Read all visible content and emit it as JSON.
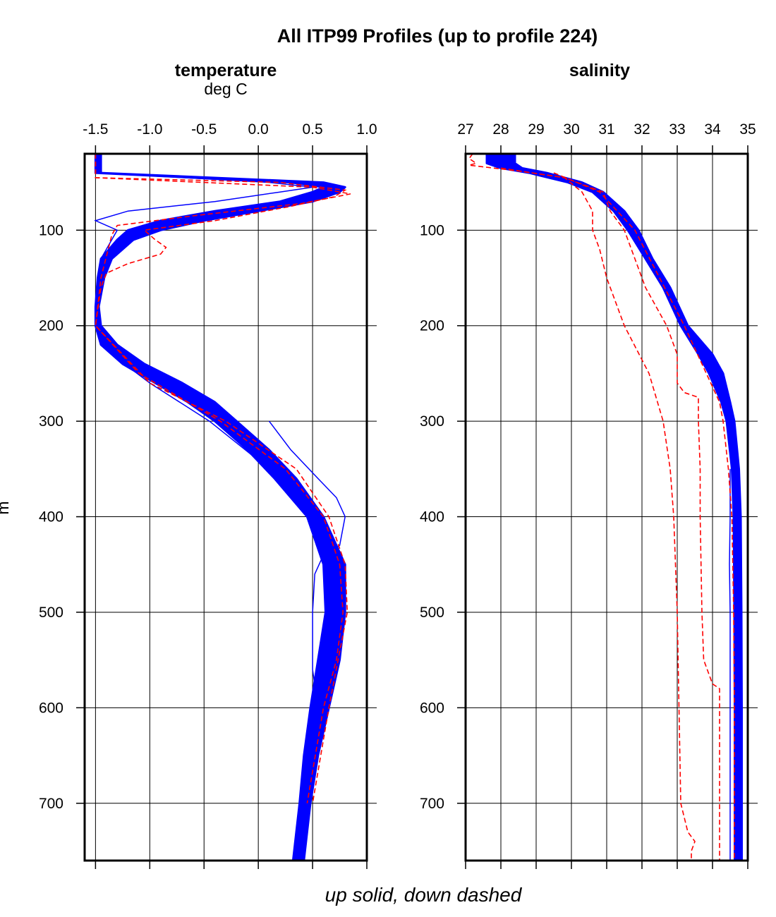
{
  "chart_data": {
    "type": "line",
    "title": "All ITP99 Profiles (up to profile 224)",
    "xlabel": "up solid, down dashed",
    "ylabel": "m",
    "legend": [
      {
        "name": "up solid",
        "color": "#0000ff",
        "style": "solid"
      },
      {
        "name": "down dashed",
        "color": "#ff0000",
        "style": "dashed"
      }
    ],
    "panels": [
      {
        "name": "temperature",
        "title": "temperature",
        "unit": "deg C",
        "xlim": [
          -1.6,
          1.0
        ],
        "ylim": [
          760,
          20
        ],
        "xticks": [
          -1.5,
          -1.0,
          -0.5,
          0.0,
          0.5,
          1.0
        ],
        "xtick_labels": [
          "-1.5",
          "-1.0",
          "-0.5",
          "0.0",
          "0.5",
          "1.0"
        ],
        "yticks": [
          100,
          200,
          300,
          400,
          500,
          600,
          700
        ],
        "ytick_labels": [
          "100",
          "200",
          "300",
          "400",
          "500",
          "600",
          "700"
        ],
        "up_band": {
          "depth": [
            20,
            40,
            50,
            55,
            60,
            70,
            80,
            90,
            100,
            110,
            130,
            150,
            180,
            200,
            220,
            240,
            260,
            280,
            300,
            330,
            360,
            400,
            450,
            500,
            550,
            600,
            650,
            700,
            760
          ],
          "min": [
            -1.5,
            -1.5,
            0.3,
            0.6,
            0.5,
            0.2,
            -0.4,
            -0.9,
            -1.2,
            -1.3,
            -1.45,
            -1.48,
            -1.5,
            -1.5,
            -1.45,
            -1.25,
            -0.95,
            -0.65,
            -0.4,
            -0.1,
            0.15,
            0.45,
            0.6,
            0.62,
            0.55,
            0.48,
            0.42,
            0.38,
            0.32
          ],
          "max": [
            -1.45,
            -1.45,
            0.6,
            0.8,
            0.75,
            0.5,
            0.0,
            -0.5,
            -0.9,
            -1.15,
            -1.35,
            -1.42,
            -1.47,
            -1.45,
            -1.3,
            -1.05,
            -0.7,
            -0.4,
            -0.2,
            0.1,
            0.35,
            0.6,
            0.8,
            0.8,
            0.75,
            0.65,
            0.55,
            0.48,
            0.42
          ]
        },
        "up_lines": [
          {
            "depth": [
              20,
              40,
              50,
              55,
              60,
              70,
              80,
              90,
              100,
              130,
              180,
              200,
              230,
              260,
              300,
              350,
              400,
              450,
              500,
              550,
              600,
              700,
              760
            ],
            "values": [
              -1.5,
              -1.48,
              0.1,
              0.5,
              0.2,
              -0.4,
              -1.2,
              -1.5,
              -1.3,
              -1.45,
              -1.5,
              -1.48,
              -1.35,
              -1.0,
              -0.45,
              0.1,
              0.55,
              0.7,
              0.72,
              0.68,
              0.6,
              0.45,
              0.36
            ]
          },
          {
            "depth": [
              300,
              330,
              360,
              380,
              400,
              430,
              440,
              460,
              500,
              560,
              600
            ],
            "values": [
              0.1,
              0.3,
              0.55,
              0.72,
              0.8,
              0.75,
              0.6,
              0.52,
              0.5,
              0.5,
              0.55
            ]
          }
        ],
        "down_lines": [
          {
            "depth": [
              20,
              45,
              50,
              58,
              65,
              75,
              90,
              100,
              110,
              118,
              125,
              135,
              145,
              160,
              200,
              250,
              300,
              350,
              400,
              450,
              500,
              550,
              600,
              700
            ],
            "values": [
              -1.5,
              -1.5,
              0.2,
              0.8,
              0.7,
              0.3,
              -0.4,
              -1.05,
              -0.95,
              -0.85,
              -0.9,
              -1.2,
              -1.4,
              -1.45,
              -1.5,
              -1.1,
              -0.35,
              0.25,
              0.6,
              0.75,
              0.78,
              0.72,
              0.6,
              0.45
            ]
          },
          {
            "depth": [
              20,
              45,
              55,
              62,
              72,
              85,
              95,
              105,
              150,
              200,
              260,
              300,
              350,
              400,
              450,
              500,
              600,
              700
            ],
            "values": [
              -1.5,
              -1.5,
              0.5,
              0.85,
              0.4,
              -0.6,
              -1.3,
              -1.35,
              -1.45,
              -1.5,
              -1.0,
              -0.3,
              0.35,
              0.65,
              0.8,
              0.82,
              0.65,
              0.5
            ]
          }
        ]
      },
      {
        "name": "salinity",
        "title": "salinity",
        "unit": "",
        "xlim": [
          27,
          35
        ],
        "ylim": [
          760,
          20
        ],
        "xticks": [
          27,
          28,
          29,
          30,
          31,
          32,
          33,
          34,
          35
        ],
        "xtick_labels": [
          "27",
          "28",
          "29",
          "30",
          "31",
          "32",
          "33",
          "34",
          "35"
        ],
        "yticks": [
          100,
          200,
          300,
          400,
          500,
          600,
          700
        ],
        "ytick_labels": [
          "100",
          "200",
          "300",
          "400",
          "500",
          "600",
          "700"
        ],
        "up_band": {
          "depth": [
            20,
            30,
            35,
            40,
            50,
            60,
            80,
            100,
            130,
            160,
            200,
            230,
            250,
            280,
            300,
            350,
            400,
            500,
            600,
            700,
            760
          ],
          "min": [
            27.6,
            27.6,
            28.0,
            28.8,
            29.9,
            30.6,
            31.2,
            31.6,
            32.1,
            32.6,
            33.1,
            33.6,
            33.9,
            34.25,
            34.4,
            34.55,
            34.6,
            34.62,
            34.63,
            34.63,
            34.63
          ],
          "max": [
            28.4,
            28.4,
            28.6,
            29.3,
            30.3,
            30.9,
            31.5,
            31.9,
            32.3,
            32.8,
            33.3,
            34.0,
            34.3,
            34.5,
            34.62,
            34.75,
            34.8,
            34.82,
            34.83,
            34.83,
            34.83
          ]
        },
        "up_lines": [
          {
            "depth": [
              350,
              400,
              450,
              500,
              550,
              600,
              700,
              760
            ],
            "values": [
              34.5,
              34.5,
              34.48,
              34.5,
              34.5,
              34.5,
              34.5,
              34.5
            ]
          }
        ],
        "down_lines": [
          {
            "depth": [
              20,
              25,
              30,
              32,
              38,
              45,
              60,
              80,
              100,
              120,
              150,
              200,
              250,
              300,
              350,
              400,
              500,
              600,
              700,
              730,
              740,
              750,
              760
            ],
            "values": [
              27.2,
              27.1,
              27.3,
              27.1,
              28.5,
              29.8,
              30.3,
              30.6,
              30.6,
              30.8,
              31.0,
              31.5,
              32.2,
              32.6,
              32.8,
              32.9,
              33.0,
              33.05,
              33.1,
              33.3,
              33.5,
              33.4,
              33.4
            ]
          },
          {
            "depth": [
              35,
              45,
              60,
              80,
              100,
              130,
              160,
              200,
              230,
              260,
              270,
              275,
              300,
              350,
              400,
              500,
              550,
              575,
              580,
              600,
              700,
              760
            ],
            "values": [
              28.0,
              29.8,
              30.9,
              31.1,
              31.5,
              31.8,
              32.1,
              32.7,
              33.0,
              33.0,
              33.2,
              33.6,
              33.6,
              33.65,
              33.65,
              33.7,
              33.75,
              34.0,
              34.2,
              34.2,
              34.2,
              34.2
            ]
          },
          {
            "depth": [
              40,
              60,
              100,
              200,
              280,
              300,
              350,
              400,
              500,
              600,
              700,
              760
            ],
            "values": [
              29.5,
              30.8,
              31.8,
              33.2,
              34.2,
              34.3,
              34.45,
              34.55,
              34.6,
              34.62,
              34.62,
              34.62
            ]
          }
        ]
      }
    ]
  }
}
